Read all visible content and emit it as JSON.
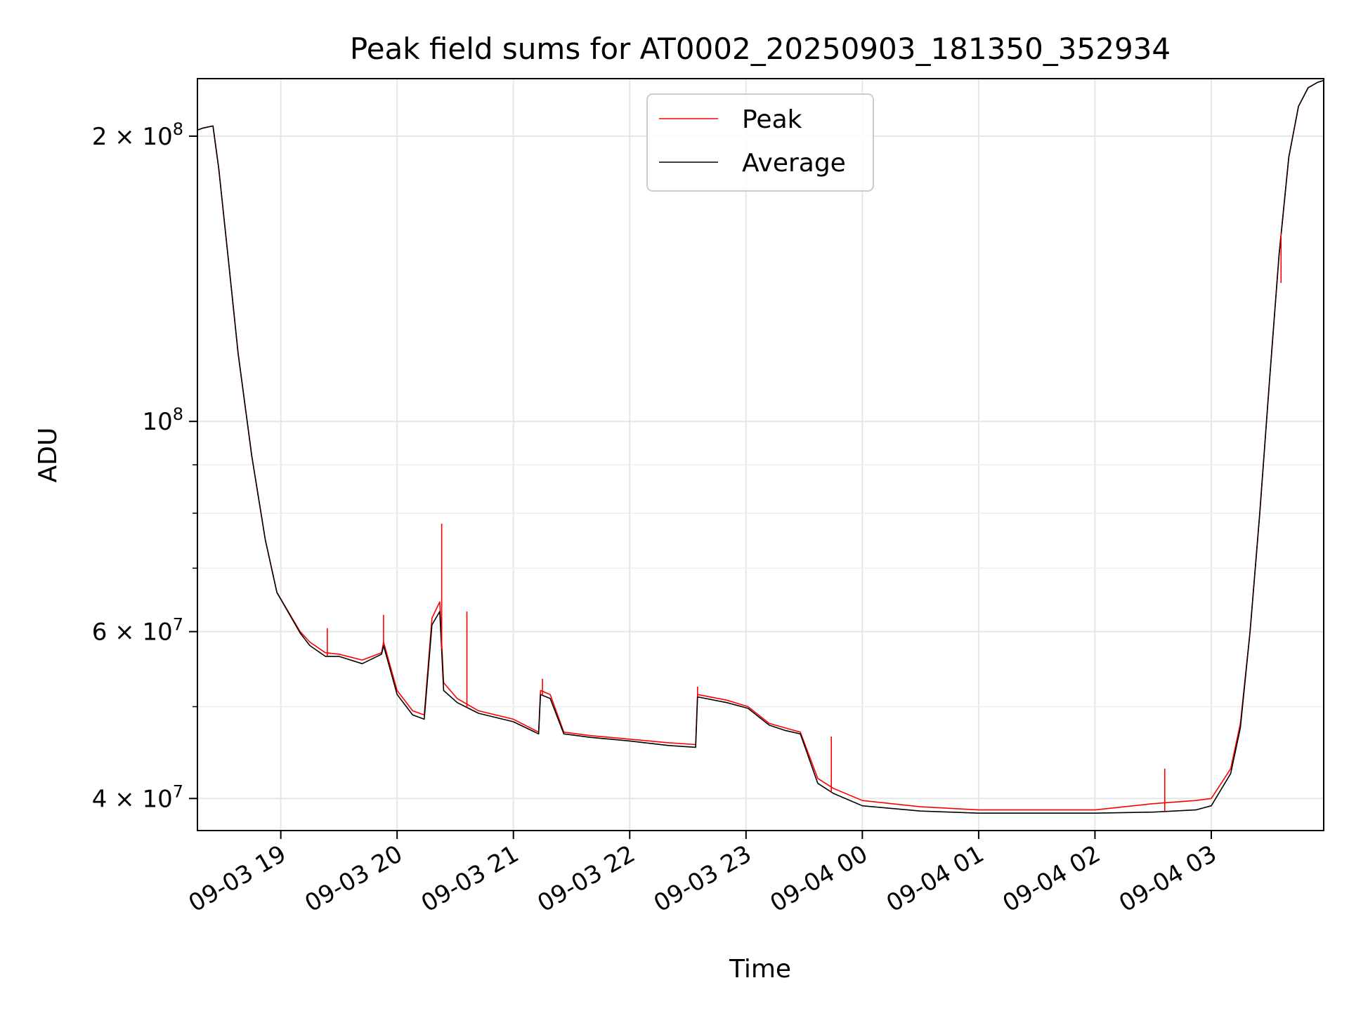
{
  "chart_data": {
    "type": "line",
    "title": "Peak field sums for AT0002_20250903_181350_352934",
    "xlabel": "Time",
    "ylabel": "ADU",
    "yscale": "log",
    "ylim": [
      37000000,
      230000000
    ],
    "xlim": [
      "2025-09-03 18:17",
      "2025-09-04 03:58"
    ],
    "grid": true,
    "legend_position": "upper-center",
    "x_tick_labels": [
      "09-03 19",
      "09-03 20",
      "09-03 21",
      "09-03 22",
      "09-03 23",
      "09-04 00",
      "09-04 01",
      "09-04 02",
      "09-04 03"
    ],
    "x_ticks": [
      "2025-09-03 19:00",
      "2025-09-03 20:00",
      "2025-09-03 21:00",
      "2025-09-03 22:00",
      "2025-09-03 23:00",
      "2025-09-04 00:00",
      "2025-09-04 01:00",
      "2025-09-04 02:00",
      "2025-09-04 03:00"
    ],
    "y_ticks": [
      {
        "value": 40000000,
        "label": "4 × 10",
        "exp": "7"
      },
      {
        "value": 60000000,
        "label": "6 × 10",
        "exp": "7"
      },
      {
        "value": 100000000,
        "label": "10",
        "exp": "8"
      },
      {
        "value": 200000000,
        "label": "2 × 10",
        "exp": "8"
      }
    ],
    "y_minor_ticks": [
      50000000,
      70000000,
      80000000,
      90000000
    ],
    "series": [
      {
        "name": "Peak",
        "color": "#ff0000",
        "x": [
          "2025-09-03 18:17",
          "2025-09-03 18:20",
          "2025-09-03 18:25",
          "2025-09-03 18:28",
          "2025-09-03 18:33",
          "2025-09-03 18:38",
          "2025-09-03 18:45",
          "2025-09-03 18:52",
          "2025-09-03 18:58",
          "2025-09-03 19:10",
          "2025-09-03 19:15",
          "2025-09-03 19:23",
          "2025-09-03 19:30",
          "2025-09-03 19:42",
          "2025-09-03 19:52",
          "2025-09-03 19:53",
          "2025-09-03 20:00",
          "2025-09-03 20:08",
          "2025-09-03 20:14",
          "2025-09-03 20:18",
          "2025-09-03 20:22",
          "2025-09-03 20:24",
          "2025-09-03 20:31",
          "2025-09-03 20:42",
          "2025-09-03 21:00",
          "2025-09-03 21:13",
          "2025-09-03 21:14",
          "2025-09-03 21:19",
          "2025-09-03 21:26",
          "2025-09-03 21:40",
          "2025-09-03 22:00",
          "2025-09-03 22:20",
          "2025-09-03 22:34",
          "2025-09-03 22:35",
          "2025-09-03 22:50",
          "2025-09-03 23:01",
          "2025-09-03 23:12",
          "2025-09-03 23:20",
          "2025-09-03 23:28",
          "2025-09-03 23:37",
          "2025-09-03 23:45",
          "2025-09-04 00:00",
          "2025-09-04 00:30",
          "2025-09-04 01:00",
          "2025-09-04 02:00",
          "2025-09-04 02:30",
          "2025-09-04 02:52",
          "2025-09-04 03:00",
          "2025-09-04 03:10",
          "2025-09-04 03:15",
          "2025-09-04 03:20",
          "2025-09-04 03:25",
          "2025-09-04 03:30",
          "2025-09-04 03:35",
          "2025-09-04 03:40",
          "2025-09-04 03:45",
          "2025-09-04 03:50",
          "2025-09-04 03:55",
          "2025-09-04 03:58"
        ],
        "y": [
          203000000,
          204000000,
          205000000,
          185000000,
          148000000,
          118000000,
          92000000,
          75000000,
          66000000,
          60000000,
          58500000,
          57000000,
          56800000,
          56000000,
          57000000,
          58500000,
          52000000,
          49500000,
          49000000,
          62000000,
          64500000,
          53000000,
          51000000,
          49500000,
          48500000,
          47000000,
          52000000,
          51500000,
          47000000,
          46600000,
          46200000,
          45800000,
          45600000,
          51500000,
          50800000,
          50000000,
          48000000,
          47500000,
          47000000,
          42000000,
          41000000,
          39800000,
          39200000,
          38900000,
          38900000,
          39500000,
          39800000,
          40000000,
          43000000,
          48000000,
          60000000,
          80000000,
          110000000,
          150000000,
          190000000,
          215000000,
          225000000,
          228000000,
          229000000
        ]
      },
      {
        "name": "Average",
        "color": "#000000",
        "x": [
          "2025-09-03 18:17",
          "2025-09-03 18:20",
          "2025-09-03 18:25",
          "2025-09-03 18:28",
          "2025-09-03 18:33",
          "2025-09-03 18:38",
          "2025-09-03 18:45",
          "2025-09-03 18:52",
          "2025-09-03 18:58",
          "2025-09-03 19:10",
          "2025-09-03 19:15",
          "2025-09-03 19:23",
          "2025-09-03 19:30",
          "2025-09-03 19:42",
          "2025-09-03 19:52",
          "2025-09-03 19:53",
          "2025-09-03 20:00",
          "2025-09-03 20:08",
          "2025-09-03 20:14",
          "2025-09-03 20:18",
          "2025-09-03 20:22",
          "2025-09-03 20:24",
          "2025-09-03 20:31",
          "2025-09-03 20:42",
          "2025-09-03 21:00",
          "2025-09-03 21:13",
          "2025-09-03 21:14",
          "2025-09-03 21:19",
          "2025-09-03 21:26",
          "2025-09-03 21:40",
          "2025-09-03 22:00",
          "2025-09-03 22:20",
          "2025-09-03 22:34",
          "2025-09-03 22:35",
          "2025-09-03 22:50",
          "2025-09-03 23:01",
          "2025-09-03 23:12",
          "2025-09-03 23:20",
          "2025-09-03 23:28",
          "2025-09-03 23:37",
          "2025-09-03 23:45",
          "2025-09-04 00:00",
          "2025-09-04 00:30",
          "2025-09-04 01:00",
          "2025-09-04 02:00",
          "2025-09-04 02:30",
          "2025-09-04 02:52",
          "2025-09-04 03:00",
          "2025-09-04 03:10",
          "2025-09-04 03:15",
          "2025-09-04 03:20",
          "2025-09-04 03:25",
          "2025-09-04 03:30",
          "2025-09-04 03:35",
          "2025-09-04 03:40",
          "2025-09-04 03:45",
          "2025-09-04 03:50",
          "2025-09-04 03:55",
          "2025-09-04 03:58"
        ],
        "y": [
          203000000,
          204000000,
          205000000,
          185000000,
          148000000,
          118000000,
          92000000,
          75000000,
          66000000,
          59800000,
          58000000,
          56500000,
          56500000,
          55500000,
          56800000,
          58000000,
          51500000,
          49000000,
          48500000,
          61000000,
          63000000,
          52000000,
          50500000,
          49200000,
          48200000,
          46800000,
          51500000,
          51000000,
          46800000,
          46400000,
          46000000,
          45500000,
          45300000,
          51200000,
          50500000,
          49800000,
          47800000,
          47200000,
          46800000,
          41500000,
          40500000,
          39300000,
          38800000,
          38600000,
          38600000,
          38700000,
          38900000,
          39300000,
          42500000,
          47500000,
          60000000,
          80000000,
          110000000,
          150000000,
          190000000,
          215000000,
          225000000,
          228000000,
          229000000
        ]
      }
    ],
    "peak_spikes": [
      {
        "x": "2025-09-03 19:24",
        "y": 60500000
      },
      {
        "x": "2025-09-03 19:53",
        "y": 62500000
      },
      {
        "x": "2025-09-03 20:23",
        "y": 78000000
      },
      {
        "x": "2025-09-03 20:36",
        "y": 63000000
      },
      {
        "x": "2025-09-03 21:15",
        "y": 53500000
      },
      {
        "x": "2025-09-03 22:35",
        "y": 52500000
      },
      {
        "x": "2025-09-03 23:44",
        "y": 46500000
      },
      {
        "x": "2025-09-04 02:36",
        "y": 43000000
      },
      {
        "x": "2025-09-04 03:36",
        "y": 140000000
      }
    ]
  }
}
